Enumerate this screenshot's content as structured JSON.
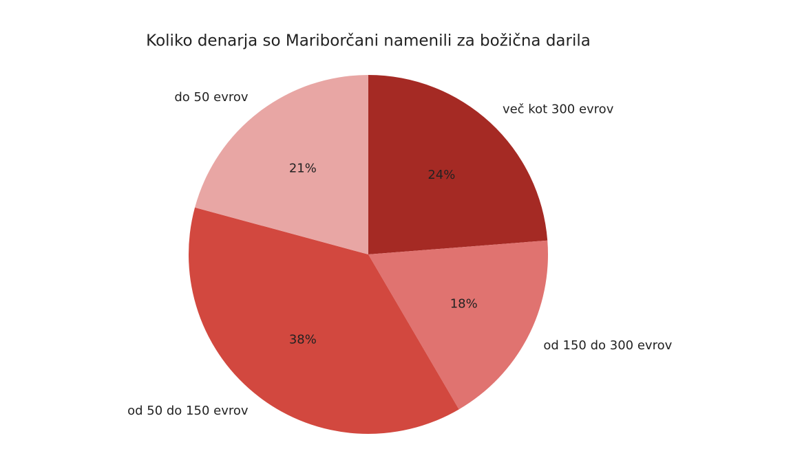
{
  "chart_data": {
    "type": "pie",
    "title": "Koliko denarja so Mariborčani namenili za božična darila",
    "categories": [
      "več kot 300 evrov",
      "od 150 do 300 evrov",
      "od 50 do 150 evrov",
      "do 50 evrov"
    ],
    "values": [
      24,
      18,
      38,
      21
    ],
    "value_labels": [
      "24%",
      "18%",
      "38%",
      "21%"
    ],
    "colors": [
      "#a52a24",
      "#e07370",
      "#d2483f",
      "#e8a6a4"
    ]
  }
}
